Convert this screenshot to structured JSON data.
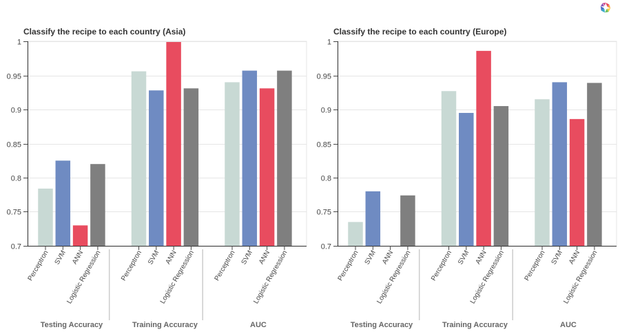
{
  "toolbar": {
    "logo_icon": "bokeh-logo-icon"
  },
  "colors": {
    "Perceptron": "#c8d9d4",
    "SVM": "#6f8bc2",
    "ANN": "#e84c5f",
    "Logistic Regression": "#7f7f7f"
  },
  "chart_data": [
    {
      "type": "bar",
      "title": "Classify the recipe to each country (Asia)",
      "groups": [
        "Testing Accuracy",
        "Training Accuracy",
        "AUC"
      ],
      "categories": [
        "Perceptron",
        "SVM",
        "ANN",
        "Logistic Regression"
      ],
      "series": [
        {
          "group": "Testing Accuracy",
          "values": [
            0.784,
            0.825,
            0.73,
            0.82
          ]
        },
        {
          "group": "Training Accuracy",
          "values": [
            0.956,
            0.928,
            0.999,
            0.931
          ]
        },
        {
          "group": "AUC",
          "values": [
            0.94,
            0.957,
            0.931,
            0.957
          ]
        }
      ],
      "ylim": [
        0.7,
        1.0
      ],
      "yticks": [
        "0.7",
        "0.75",
        "0.8",
        "0.85",
        "0.9",
        "0.95",
        "1"
      ],
      "grid": true
    },
    {
      "type": "bar",
      "title": "Classify the recipe to each country (Europe)",
      "groups": [
        "Testing Accuracy",
        "Training Accuracy",
        "AUC"
      ],
      "categories": [
        "Perceptron",
        "SVM",
        "ANN",
        "Logistic Regression"
      ],
      "series": [
        {
          "group": "Testing Accuracy",
          "values": [
            0.735,
            0.78,
            0.69,
            0.774
          ]
        },
        {
          "group": "Training Accuracy",
          "values": [
            0.927,
            0.895,
            0.986,
            0.905
          ]
        },
        {
          "group": "AUC",
          "values": [
            0.915,
            0.94,
            0.886,
            0.939
          ]
        }
      ],
      "ylim": [
        0.7,
        1.0
      ],
      "yticks": [
        "0.7",
        "0.75",
        "0.8",
        "0.85",
        "0.9",
        "0.95",
        "1"
      ],
      "grid": true
    }
  ]
}
